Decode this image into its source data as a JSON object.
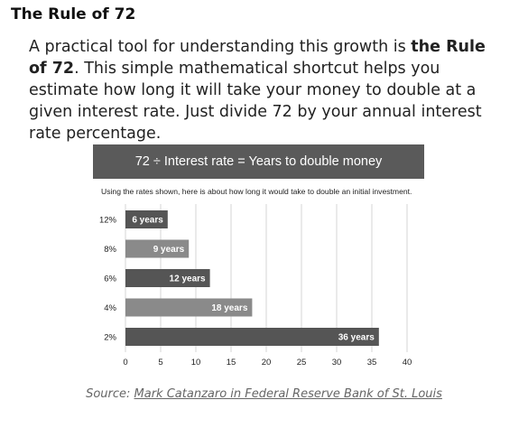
{
  "heading": "The Rule of 72",
  "paragraph": {
    "before": "A practical tool for understanding this growth is ",
    "bold": "the Rule of 72",
    "after": ". This simple mathematical shortcut helps you estimate how long it will take your money to double at a given interest rate. Just divide 72 by your annual interest rate percentage."
  },
  "source": {
    "prefix": "Source: ",
    "link_text": "Mark Catanzaro in Federal Reserve Bank of St. Louis"
  },
  "colors": {
    "bar_dark": "#555555",
    "bar_light": "#8a8a8a",
    "banner": "#5a5a5a",
    "grid": "#d6d6d6"
  },
  "chart_data": {
    "type": "bar",
    "orientation": "horizontal",
    "title": "72 ÷ Interest rate = Years to double money",
    "subtitle": "Using the rates shown, here is about how long it would take to double an initial investment.",
    "categories": [
      "12%",
      "8%",
      "6%",
      "4%",
      "2%"
    ],
    "values": [
      6,
      9,
      12,
      18,
      36
    ],
    "data_labels": [
      "6 years",
      "9 years",
      "12 years",
      "18 years",
      "36 years"
    ],
    "xlim": [
      0,
      40
    ],
    "xticks": [
      0,
      5,
      10,
      15,
      20,
      25,
      30,
      35,
      40
    ],
    "grid": true,
    "bar_shades": [
      "dark",
      "light",
      "dark",
      "light",
      "dark"
    ]
  }
}
